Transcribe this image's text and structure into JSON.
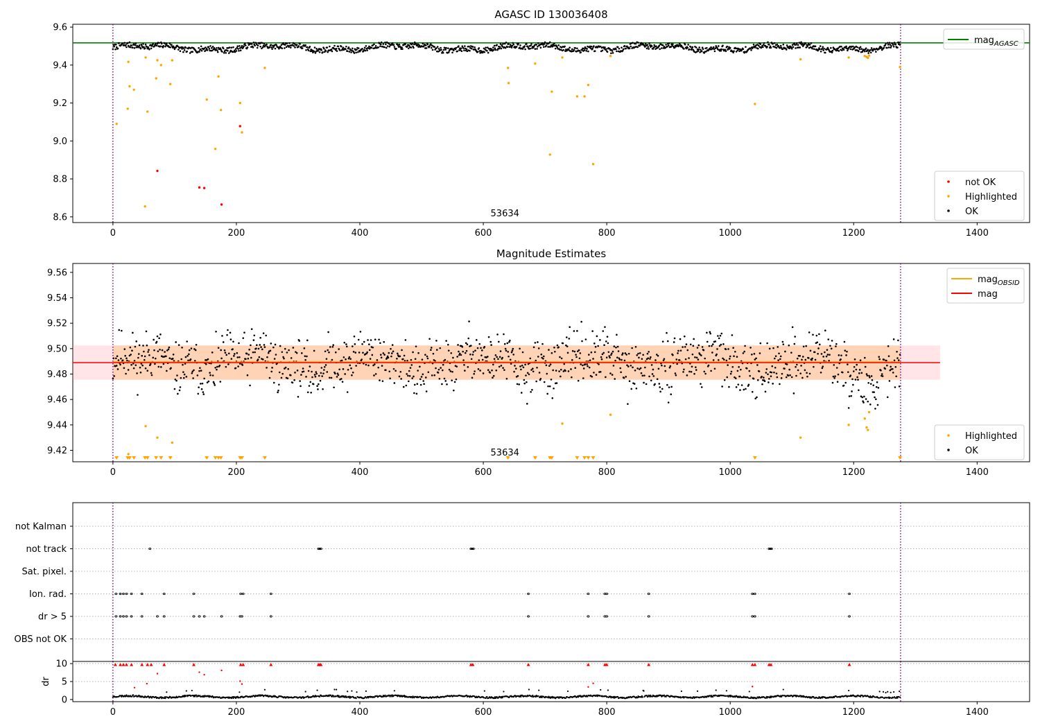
{
  "chart_data": [
    {
      "type": "scatter",
      "title": "AGASC ID 130036408",
      "annotation": "53634",
      "xlim": [
        -65,
        1485
      ],
      "ylim": [
        8.57,
        9.615
      ],
      "xticks": [
        0,
        200,
        400,
        600,
        800,
        1000,
        1200,
        1400
      ],
      "yticks": [
        8.6,
        8.8,
        9.0,
        9.2,
        9.4,
        9.6
      ],
      "ytick_labels": [
        "8.6",
        "8.8",
        "9.0",
        "9.2",
        "9.4",
        "9.6"
      ],
      "vlines": [
        0,
        1276
      ],
      "hlines": [
        {
          "name": "mag_AGASC",
          "y": 9.517,
          "color": "#008000"
        }
      ],
      "legend_top": {
        "position": "top-right",
        "entries": [
          {
            "label": "mag",
            "sub": "AGASC",
            "color": "#008000"
          }
        ]
      },
      "legend_bottom": {
        "position": "bottom-right",
        "entries": [
          {
            "label": "not OK",
            "color": "#ff0000"
          },
          {
            "label": "Highlighted",
            "color": "#ffa500"
          },
          {
            "label": "OK",
            "color": "#000000"
          }
        ]
      },
      "series": [
        {
          "name": "not OK",
          "color": "#ff0000",
          "points": [
            [
              72,
              8.842
            ],
            [
              140,
              8.755
            ],
            [
              148,
              8.752
            ],
            [
              176,
              8.665
            ],
            [
              206,
              9.078
            ]
          ]
        },
        {
          "name": "Highlighted",
          "color": "#ffa500",
          "points": [
            [
              6,
              9.09
            ],
            [
              24,
              9.17
            ],
            [
              25,
              9.417
            ],
            [
              27,
              9.288
            ],
            [
              34,
              9.27
            ],
            [
              52,
              8.655
            ],
            [
              53,
              9.44
            ],
            [
              56,
              9.155
            ],
            [
              70,
              9.33
            ],
            [
              72,
              9.425
            ],
            [
              78,
              9.4
            ],
            [
              93,
              9.3
            ],
            [
              96,
              9.425
            ],
            [
              152,
              9.218
            ],
            [
              166,
              8.958
            ],
            [
              171,
              9.34
            ],
            [
              175,
              9.163
            ],
            [
              206,
              9.2
            ],
            [
              209,
              9.045
            ],
            [
              246,
              9.385
            ],
            [
              640,
              9.385
            ],
            [
              641,
              9.305
            ],
            [
              684,
              9.408
            ],
            [
              708,
              8.928
            ],
            [
              711,
              9.26
            ],
            [
              728,
              9.44
            ],
            [
              752,
              9.235
            ],
            [
              764,
              9.235
            ],
            [
              770,
              9.295
            ],
            [
              778,
              8.878
            ],
            [
              806,
              9.448
            ],
            [
              1040,
              9.195
            ],
            [
              1114,
              9.43
            ],
            [
              1192,
              9.44
            ],
            [
              1218,
              9.448
            ],
            [
              1221,
              9.443
            ],
            [
              1223,
              9.438
            ],
            [
              1225,
              9.45
            ],
            [
              1275,
              9.39
            ]
          ]
        }
      ]
    },
    {
      "type": "scatter",
      "title": "Magnitude Estimates",
      "annotation": "53634",
      "xlim": [
        -65,
        1485
      ],
      "ylim": [
        9.411,
        9.567
      ],
      "xticks": [
        0,
        200,
        400,
        600,
        800,
        1000,
        1200,
        1400
      ],
      "yticks": [
        9.42,
        9.44,
        9.46,
        9.48,
        9.5,
        9.52,
        9.54,
        9.56
      ],
      "ytick_labels": [
        "9.42",
        "9.44",
        "9.46",
        "9.48",
        "9.50",
        "9.52",
        "9.54",
        "9.56"
      ],
      "vlines": [
        0,
        1276
      ],
      "hlines": [
        {
          "name": "mag_OBSID",
          "y": 9.4895,
          "color": "#ffa500"
        },
        {
          "name": "mag",
          "y": 9.489,
          "color": "#ff0000"
        }
      ],
      "bands": [
        {
          "name": "mag_OBSID range",
          "x": [
            0,
            1276
          ],
          "y": [
            9.4755,
            9.5025
          ],
          "color": "#ffa500",
          "opacity": 0.25
        },
        {
          "name": "mag range",
          "x": [
            -65,
            1340
          ],
          "y": [
            9.4755,
            9.5025
          ],
          "color": "#ff8898",
          "opacity": 0.22
        }
      ],
      "legend_top": {
        "position": "top-right",
        "entries": [
          {
            "label": "mag",
            "sub": "OBSID",
            "color": "#ffa500"
          },
          {
            "label": "mag",
            "sub": "",
            "color": "#ff0000"
          }
        ]
      },
      "legend_bottom": {
        "position": "bottom-right",
        "entries": [
          {
            "label": "Highlighted",
            "color": "#ffa500"
          },
          {
            "label": "OK",
            "color": "#000000"
          }
        ]
      },
      "series": [
        {
          "name": "Highlighted",
          "color": "#ffa500",
          "points": [
            [
              25,
              9.417
            ],
            [
              53,
              9.439
            ],
            [
              72,
              9.43
            ],
            [
              96,
              9.426
            ],
            [
              728,
              9.441
            ],
            [
              806,
              9.448
            ],
            [
              1114,
              9.43
            ],
            [
              1192,
              9.44
            ],
            [
              1218,
              9.445
            ],
            [
              1221,
              9.438
            ],
            [
              1223,
              9.436
            ],
            [
              1225,
              9.45
            ]
          ]
        },
        {
          "name": "Highlighted (below axis)",
          "marker": "triangle-down",
          "color": "#ffa500",
          "x": [
            6,
            24,
            27,
            34,
            52,
            56,
            70,
            78,
            93,
            152,
            166,
            171,
            175,
            206,
            209,
            246,
            640,
            684,
            708,
            711,
            752,
            764,
            770,
            778,
            1040,
            1275
          ]
        }
      ]
    },
    {
      "type": "scatter",
      "xlim": [
        -65,
        1485
      ],
      "xticks": [
        0,
        200,
        400,
        600,
        800,
        1000,
        1200,
        1400
      ],
      "vlines": [
        0,
        1276
      ],
      "categories": [
        "not Kalman",
        "not track",
        "Sat. pixel.",
        "Ion. rad.",
        "dr > 5",
        "OBS not OK"
      ],
      "flags": [
        {
          "category": "not track",
          "x": [
            60,
            333,
            335,
            337,
            580,
            582,
            584,
            1063,
            1065,
            1067
          ]
        },
        {
          "category": "Ion. rad.",
          "x": [
            5,
            12,
            17,
            22,
            30,
            47,
            83,
            131,
            207,
            211,
            256,
            673,
            770,
            797,
            800,
            868,
            1036,
            1040,
            1193
          ]
        },
        {
          "category": "dr > 5",
          "x": [
            5,
            12,
            17,
            22,
            30,
            47,
            72,
            83,
            131,
            140,
            148,
            176,
            206,
            209,
            256,
            673,
            770,
            797,
            800,
            868,
            1036,
            1040,
            1193
          ]
        }
      ]
    },
    {
      "type": "scatter",
      "ylabel": "dr",
      "xlim": [
        -65,
        1485
      ],
      "ylim": [
        -0.6,
        10.6
      ],
      "xticks": [
        0,
        200,
        400,
        600,
        800,
        1000,
        1200,
        1400
      ],
      "yticks": [
        0,
        5,
        10
      ],
      "ytick_labels": [
        "0",
        "5",
        "10"
      ],
      "vlines": [
        0,
        1276
      ],
      "series": [
        {
          "name": "not OK",
          "color": "#ff0000",
          "points": [
            [
              4,
              9.7
            ],
            [
              12,
              9.7
            ],
            [
              17,
              9.7
            ],
            [
              22,
              9.7
            ],
            [
              30,
              9.7
            ],
            [
              47,
              9.7
            ],
            [
              56,
              9.7
            ],
            [
              62,
              9.7
            ],
            [
              83,
              9.7
            ],
            [
              131,
              9.7
            ],
            [
              207,
              9.7
            ],
            [
              211,
              9.7
            ],
            [
              256,
              9.7
            ],
            [
              333,
              9.7
            ],
            [
              335,
              9.7
            ],
            [
              337,
              9.7
            ],
            [
              580,
              9.7
            ],
            [
              583,
              9.7
            ],
            [
              673,
              9.7
            ],
            [
              770,
              9.7
            ],
            [
              797,
              9.7
            ],
            [
              800,
              9.7
            ],
            [
              868,
              9.7
            ],
            [
              1036,
              9.7
            ],
            [
              1040,
              9.7
            ],
            [
              1063,
              9.7
            ],
            [
              1066,
              9.7
            ],
            [
              1193,
              9.7
            ],
            [
              35,
              3.3
            ],
            [
              55,
              4.4
            ],
            [
              72,
              7.2
            ],
            [
              140,
              7.6
            ],
            [
              148,
              6.9
            ],
            [
              176,
              8.1
            ],
            [
              206,
              5.1
            ],
            [
              209,
              4.3
            ],
            [
              770,
              3.5
            ],
            [
              778,
              4.5
            ],
            [
              1036,
              3.6
            ]
          ]
        }
      ]
    }
  ]
}
